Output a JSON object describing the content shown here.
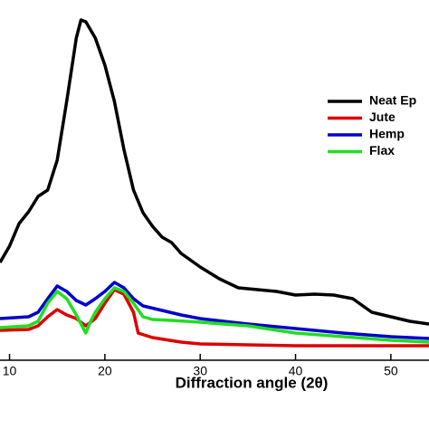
{
  "chart_data": {
    "type": "line",
    "xlabel": "Diffraction angle (2θ)",
    "xlim": [
      9,
      54
    ],
    "xticks": [
      10,
      20,
      30,
      40,
      50
    ],
    "ylim": [
      0,
      400
    ],
    "legend": "upper right",
    "series": [
      {
        "name": "Neat Ep",
        "color": "#000000",
        "x": [
          9,
          10,
          11,
          12,
          13,
          14,
          15,
          16,
          17,
          17.5,
          18,
          19,
          20,
          21,
          22,
          23,
          24,
          25,
          26,
          27,
          28,
          30,
          32,
          34,
          36,
          38,
          40,
          42,
          44,
          46,
          48,
          50,
          52,
          54
        ],
        "values": [
          110,
          128,
          153,
          166,
          183,
          190,
          223,
          288,
          358,
          378,
          376,
          358,
          328,
          288,
          235,
          190,
          165,
          150,
          138,
          132,
          120,
          105,
          92,
          82,
          80,
          78,
          74,
          75,
          74,
          70,
          55,
          50,
          45,
          42
        ]
      },
      {
        "name": "Jute",
        "color": "#dd0000",
        "x": [
          9,
          12,
          13,
          14,
          15,
          16,
          17,
          18,
          19,
          20,
          21,
          22,
          23,
          23.5,
          25,
          28,
          30,
          40,
          54
        ],
        "values": [
          35,
          36,
          40,
          50,
          58,
          52,
          48,
          40,
          48,
          65,
          80,
          75,
          55,
          32,
          27,
          22,
          20,
          18,
          18
        ]
      },
      {
        "name": "Hemp",
        "color": "#0000cc",
        "x": [
          9,
          12,
          13,
          14,
          15,
          16,
          17,
          18,
          19,
          20,
          21,
          22,
          23,
          24,
          26,
          28,
          30,
          35,
          40,
          45,
          50,
          54
        ],
        "values": [
          48,
          50,
          55,
          70,
          84,
          78,
          68,
          63,
          70,
          78,
          88,
          82,
          70,
          62,
          57,
          52,
          48,
          42,
          37,
          32,
          28,
          26
        ]
      },
      {
        "name": "Flax",
        "color": "#22dd22",
        "x": [
          9,
          12,
          13,
          14,
          15,
          16,
          17,
          18,
          18.5,
          19,
          20,
          21,
          22,
          23,
          24,
          25,
          27,
          30,
          35,
          40,
          45,
          50,
          54
        ],
        "values": [
          38,
          40,
          45,
          65,
          78,
          70,
          52,
          32,
          45,
          55,
          70,
          82,
          78,
          65,
          50,
          47,
          46,
          44,
          40,
          32,
          28,
          24,
          22
        ]
      }
    ]
  }
}
